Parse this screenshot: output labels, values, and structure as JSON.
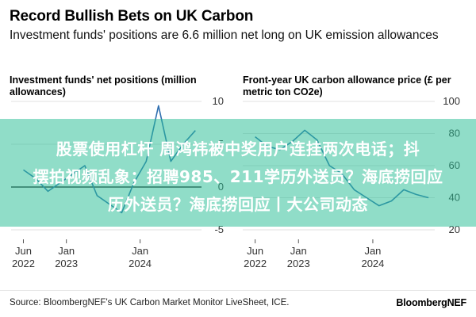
{
  "title": "Record Bullish Bets on UK Carbon",
  "subtitle": "Investment funds' positions are 6.6 million net long on UK emission allowances",
  "overlay": {
    "line1": "股票使用杠杆 周鸿祎被中奖用户连挂两次电话；抖",
    "line2": "摆拍视频乱象；招聘985、211学历外送员？海底捞回应",
    "line3": "历外送员？海底捞回应丨大公司动态"
  },
  "source": "Source: BloombergNEF's UK Carbon Market Monitor LiveSheet, ICE.",
  "brand": "BloombergNEF",
  "colors": {
    "line": "#2f6fb0",
    "zero_line": "#000000",
    "grid": "#e2e2e2",
    "overlay": "#2bbe96"
  },
  "chart_data": [
    {
      "type": "line",
      "title": "Investment funds' net positions (million allowances)",
      "x": [
        "2022-06",
        "2022-08",
        "2022-10",
        "2022-12",
        "2023-02",
        "2023-04",
        "2023-06",
        "2023-08",
        "2023-10",
        "2023-12",
        "2024-02",
        "2024-04",
        "2024-06",
        "2024-08",
        "2024-10"
      ],
      "series": [
        {
          "values": [
            2.0,
            1.0,
            -0.5,
            0.5,
            1.5,
            2.5,
            -1.0,
            -2.0,
            -3.0,
            0.5,
            3.0,
            9.5,
            3.0,
            5.0,
            6.6
          ]
        }
      ],
      "ylim": [
        -5,
        10
      ],
      "y_ticks": [
        "10",
        "5",
        "0",
        "-5"
      ],
      "x_ticks": [
        {
          "month": "Jun",
          "year": "2022"
        },
        {
          "month": "Jan",
          "year": "2023"
        },
        {
          "month": "Jan",
          "year": "2024"
        }
      ],
      "x_tick_dates": [
        "2022-06",
        "2023-01",
        "2024-01"
      ],
      "xrange": [
        "2022-04",
        "2024-11"
      ],
      "grid": true
    },
    {
      "type": "line",
      "title": "Front-year UK carbon allowance price (£ per metric ton CO2e)",
      "x": [
        "2022-06",
        "2022-08",
        "2022-10",
        "2022-12",
        "2023-02",
        "2023-04",
        "2023-06",
        "2023-08",
        "2023-10",
        "2023-12",
        "2024-02",
        "2024-04",
        "2024-06",
        "2024-08",
        "2024-10"
      ],
      "series": [
        {
          "values": [
            78,
            72,
            70,
            75,
            82,
            76,
            60,
            55,
            45,
            40,
            35,
            38,
            45,
            42,
            40
          ]
        }
      ],
      "ylim": [
        20,
        100
      ],
      "y_ticks": [
        "100",
        "80",
        "60",
        "40",
        "20"
      ],
      "x_ticks": [
        {
          "month": "Jun",
          "year": "2022"
        },
        {
          "month": "Jan",
          "year": "2023"
        },
        {
          "month": "Jan",
          "year": "2024"
        }
      ],
      "x_tick_dates": [
        "2022-06",
        "2023-01",
        "2024-01"
      ],
      "xrange": [
        "2022-04",
        "2024-11"
      ],
      "grid": true
    }
  ]
}
